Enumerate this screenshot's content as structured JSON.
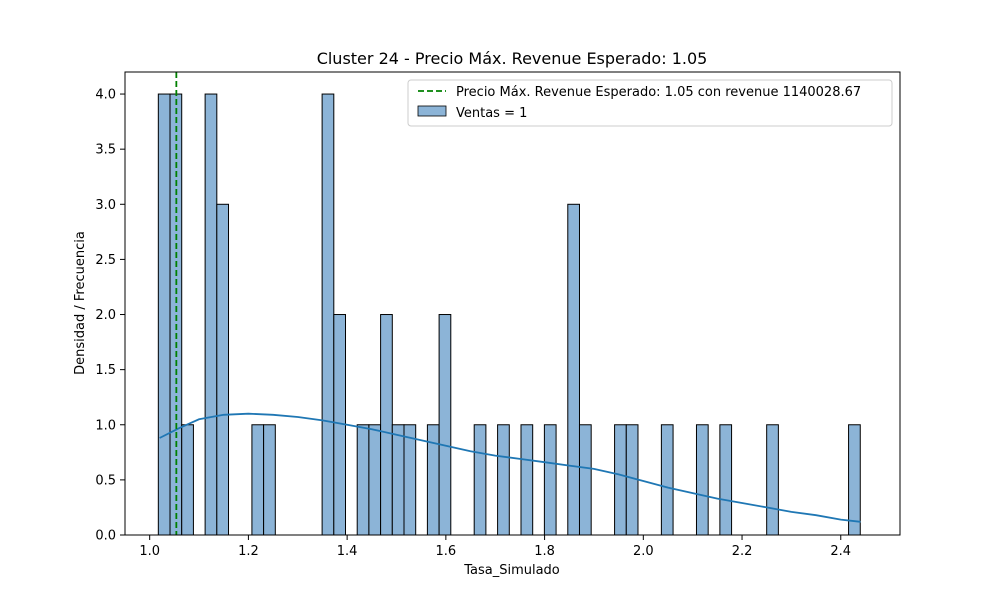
{
  "chart_data": {
    "type": "bar",
    "title": "Cluster 24 - Precio Máx. Revenue Esperado: 1.05",
    "xlabel": "Tasa_Simulado",
    "ylabel": "Densidad / Frecuencia",
    "xlim": [
      0.95,
      2.52
    ],
    "ylim": [
      0,
      4.2
    ],
    "xticks": [
      1.0,
      1.2,
      1.4,
      1.6,
      1.8,
      2.0,
      2.2,
      2.4
    ],
    "xtick_labels": [
      "1.0",
      "1.2",
      "1.4",
      "1.6",
      "1.8",
      "2.0",
      "2.2",
      "2.4"
    ],
    "yticks": [
      0.0,
      0.5,
      1.0,
      1.5,
      2.0,
      2.5,
      3.0,
      3.5,
      4.0
    ],
    "ytick_labels": [
      "0.0",
      "0.5",
      "1.0",
      "1.5",
      "2.0",
      "2.5",
      "3.0",
      "3.5",
      "4.0"
    ],
    "grid": false,
    "legend_position": "top-right",
    "bin_width": 0.0237,
    "bins": [
      {
        "x": 1.0175,
        "count": 4
      },
      {
        "x": 1.0412,
        "count": 4
      },
      {
        "x": 1.0649,
        "count": 1
      },
      {
        "x": 1.1123,
        "count": 4
      },
      {
        "x": 1.136,
        "count": 3
      },
      {
        "x": 1.2071,
        "count": 1
      },
      {
        "x": 1.2308,
        "count": 1
      },
      {
        "x": 1.3493,
        "count": 4
      },
      {
        "x": 1.373,
        "count": 2
      },
      {
        "x": 1.4204,
        "count": 1
      },
      {
        "x": 1.4441,
        "count": 1
      },
      {
        "x": 1.4678,
        "count": 2
      },
      {
        "x": 1.4915,
        "count": 1
      },
      {
        "x": 1.5152,
        "count": 1
      },
      {
        "x": 1.5626,
        "count": 1
      },
      {
        "x": 1.5863,
        "count": 2
      },
      {
        "x": 1.6574,
        "count": 1
      },
      {
        "x": 1.7048,
        "count": 1
      },
      {
        "x": 1.7522,
        "count": 1
      },
      {
        "x": 1.7996,
        "count": 1
      },
      {
        "x": 1.847,
        "count": 3
      },
      {
        "x": 1.8707,
        "count": 1
      },
      {
        "x": 1.9418,
        "count": 1
      },
      {
        "x": 1.9655,
        "count": 1
      },
      {
        "x": 2.0366,
        "count": 1
      },
      {
        "x": 2.1077,
        "count": 1
      },
      {
        "x": 2.1551,
        "count": 1
      },
      {
        "x": 2.2499,
        "count": 1
      },
      {
        "x": 2.4158,
        "count": 1
      }
    ],
    "kde": {
      "x": [
        1.02,
        1.06,
        1.1,
        1.15,
        1.2,
        1.25,
        1.3,
        1.35,
        1.4,
        1.45,
        1.5,
        1.55,
        1.6,
        1.65,
        1.7,
        1.75,
        1.8,
        1.85,
        1.9,
        1.95,
        2.0,
        2.05,
        2.1,
        2.15,
        2.2,
        2.25,
        2.3,
        2.35,
        2.4,
        2.44
      ],
      "y": [
        0.88,
        0.97,
        1.05,
        1.09,
        1.1,
        1.09,
        1.07,
        1.04,
        1.0,
        0.96,
        0.91,
        0.86,
        0.81,
        0.76,
        0.72,
        0.69,
        0.66,
        0.63,
        0.6,
        0.55,
        0.49,
        0.43,
        0.38,
        0.33,
        0.29,
        0.25,
        0.21,
        0.18,
        0.14,
        0.12
      ]
    },
    "vline": {
      "x": 1.054
    },
    "legend": {
      "vline_label": "Precio Máx. Revenue Esperado: 1.05 con revenue 1140028.67",
      "bars_label": "Ventas = 1"
    },
    "colors": {
      "bar_fill": "#8cb4d7",
      "bar_edge": "#000000",
      "kde_line": "#1f77b4",
      "vline": "#008000",
      "axis": "#000000"
    }
  }
}
